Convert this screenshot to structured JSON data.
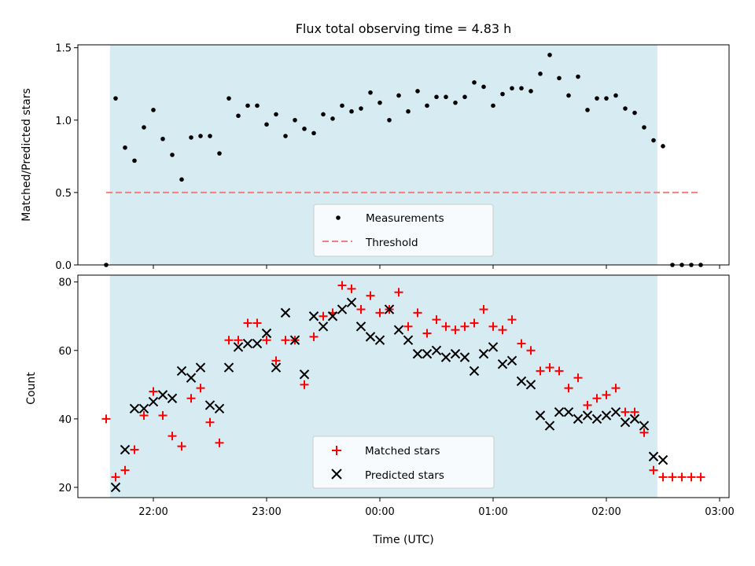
{
  "chart_data": [
    {
      "type": "scatter",
      "title": "Flux total observing time = 4.83 h",
      "xlabel": "",
      "ylabel": "Matched/Predicted stars",
      "ylim": [
        0,
        1.52
      ],
      "xlim": [
        "21:20",
        "03:05"
      ],
      "xticks": [
        "22:00",
        "23:00",
        "00:00",
        "01:00",
        "02:00",
        "03:00"
      ],
      "yticks": [
        "0.0",
        "0.5",
        "1.0",
        "1.5"
      ],
      "legend_position": "bottom-center",
      "shaded_interval": [
        "21:37",
        "02:27"
      ],
      "shade_color": "#add8e6",
      "series": [
        {
          "name": "Measurements",
          "color": "#000000",
          "marker": "dot",
          "x": [
            "21:35",
            "21:40",
            "21:45",
            "21:50",
            "21:55",
            "22:00",
            "22:05",
            "22:10",
            "22:15",
            "22:20",
            "22:25",
            "22:30",
            "22:35",
            "22:40",
            "22:45",
            "22:50",
            "22:55",
            "23:00",
            "23:05",
            "23:10",
            "23:15",
            "23:20",
            "23:25",
            "23:30",
            "23:35",
            "23:40",
            "23:45",
            "23:50",
            "23:55",
            "00:00",
            "00:05",
            "00:10",
            "00:15",
            "00:20",
            "00:25",
            "00:30",
            "00:35",
            "00:40",
            "00:45",
            "00:50",
            "00:55",
            "01:00",
            "01:05",
            "01:10",
            "01:15",
            "01:20",
            "01:25",
            "01:30",
            "01:35",
            "01:40",
            "01:45",
            "01:50",
            "01:55",
            "02:00",
            "02:05",
            "02:10",
            "02:15",
            "02:20",
            "02:25",
            "02:30",
            "02:35",
            "02:40",
            "02:45",
            "02:50"
          ],
          "y": [
            0.0,
            1.15,
            0.81,
            0.72,
            0.95,
            1.07,
            0.87,
            0.76,
            0.59,
            0.88,
            0.89,
            0.89,
            0.77,
            1.15,
            1.03,
            1.1,
            1.1,
            0.97,
            1.04,
            0.89,
            1.0,
            0.94,
            0.91,
            1.04,
            1.01,
            1.1,
            1.06,
            1.08,
            1.19,
            1.12,
            1.0,
            1.17,
            1.06,
            1.2,
            1.1,
            1.16,
            1.16,
            1.12,
            1.16,
            1.26,
            1.23,
            1.1,
            1.18,
            1.22,
            1.22,
            1.2,
            1.32,
            1.45,
            1.29,
            1.17,
            1.3,
            1.07,
            1.15,
            1.15,
            1.17,
            1.08,
            1.05,
            0.95,
            0.86,
            0.82,
            0.0,
            0.0,
            0.0,
            0.0
          ]
        },
        {
          "name": "Threshold",
          "color": "#f08080",
          "style": "dashed",
          "x": [
            "21:35",
            "02:50"
          ],
          "y": [
            0.5,
            0.5
          ]
        }
      ]
    },
    {
      "type": "scatter",
      "title": "",
      "xlabel": "Time (UTC)",
      "ylabel": "Count",
      "ylim": [
        17,
        82
      ],
      "xlim": [
        "21:20",
        "03:05"
      ],
      "xticks": [
        "22:00",
        "23:00",
        "00:00",
        "01:00",
        "02:00",
        "03:00"
      ],
      "yticks": [
        "20",
        "40",
        "60",
        "80"
      ],
      "legend_position": "bottom-center",
      "shaded_interval": [
        "21:37",
        "02:27"
      ],
      "shade_color": "#add8e6",
      "series": [
        {
          "name": "Matched stars",
          "color": "#ff0000",
          "marker": "plus",
          "x": [
            "21:35",
            "21:40",
            "21:45",
            "21:50",
            "21:55",
            "22:00",
            "22:05",
            "22:10",
            "22:15",
            "22:20",
            "22:25",
            "22:30",
            "22:35",
            "22:40",
            "22:45",
            "22:50",
            "22:55",
            "23:00",
            "23:05",
            "23:10",
            "23:15",
            "23:20",
            "23:25",
            "23:30",
            "23:35",
            "23:40",
            "23:45",
            "23:50",
            "23:55",
            "00:00",
            "00:05",
            "00:10",
            "00:15",
            "00:20",
            "00:25",
            "00:30",
            "00:35",
            "00:40",
            "00:45",
            "00:50",
            "00:55",
            "01:00",
            "01:05",
            "01:10",
            "01:15",
            "01:20",
            "01:25",
            "01:30",
            "01:35",
            "01:40",
            "01:45",
            "01:50",
            "01:55",
            "02:00",
            "02:05",
            "02:10",
            "02:15",
            "02:20",
            "02:25",
            "02:30",
            "02:35",
            "02:40",
            "02:45",
            "02:50"
          ],
          "y": [
            40,
            23,
            25,
            31,
            41,
            48,
            41,
            35,
            32,
            46,
            49,
            39,
            33,
            63,
            63,
            68,
            68,
            63,
            57,
            63,
            63,
            50,
            64,
            70,
            71,
            79,
            78,
            72,
            76,
            71,
            72,
            77,
            67,
            71,
            65,
            69,
            67,
            66,
            67,
            68,
            72,
            67,
            66,
            69,
            62,
            60,
            54,
            55,
            54,
            49,
            52,
            44,
            46,
            47,
            49,
            42,
            42,
            36,
            25,
            23,
            23,
            23,
            23,
            23
          ]
        },
        {
          "name": "Predicted stars",
          "color": "#000000",
          "marker": "x",
          "x": [
            "21:40",
            "21:45",
            "21:50",
            "21:55",
            "22:00",
            "22:05",
            "22:10",
            "22:15",
            "22:20",
            "22:25",
            "22:30",
            "22:35",
            "22:40",
            "22:45",
            "22:50",
            "22:55",
            "23:00",
            "23:05",
            "23:10",
            "23:15",
            "23:20",
            "23:25",
            "23:30",
            "23:35",
            "23:40",
            "23:45",
            "23:50",
            "23:55",
            "00:00",
            "00:05",
            "00:10",
            "00:15",
            "00:20",
            "00:25",
            "00:30",
            "00:35",
            "00:40",
            "00:45",
            "00:50",
            "00:55",
            "01:00",
            "01:05",
            "01:10",
            "01:15",
            "01:20",
            "01:25",
            "01:30",
            "01:35",
            "01:40",
            "01:45",
            "01:50",
            "01:55",
            "02:00",
            "02:05",
            "02:10",
            "02:15",
            "02:20",
            "02:25",
            "02:30"
          ],
          "y": [
            20,
            31,
            43,
            43,
            45,
            47,
            46,
            54,
            52,
            55,
            44,
            43,
            55,
            61,
            62,
            62,
            65,
            55,
            71,
            63,
            53,
            70,
            67,
            70,
            72,
            74,
            67,
            64,
            63,
            72,
            66,
            63,
            59,
            59,
            60,
            58,
            59,
            58,
            54,
            59,
            61,
            56,
            57,
            51,
            50,
            41,
            38,
            42,
            42,
            40,
            41,
            40,
            41,
            42,
            39,
            40,
            38,
            29,
            28
          ]
        }
      ]
    }
  ]
}
